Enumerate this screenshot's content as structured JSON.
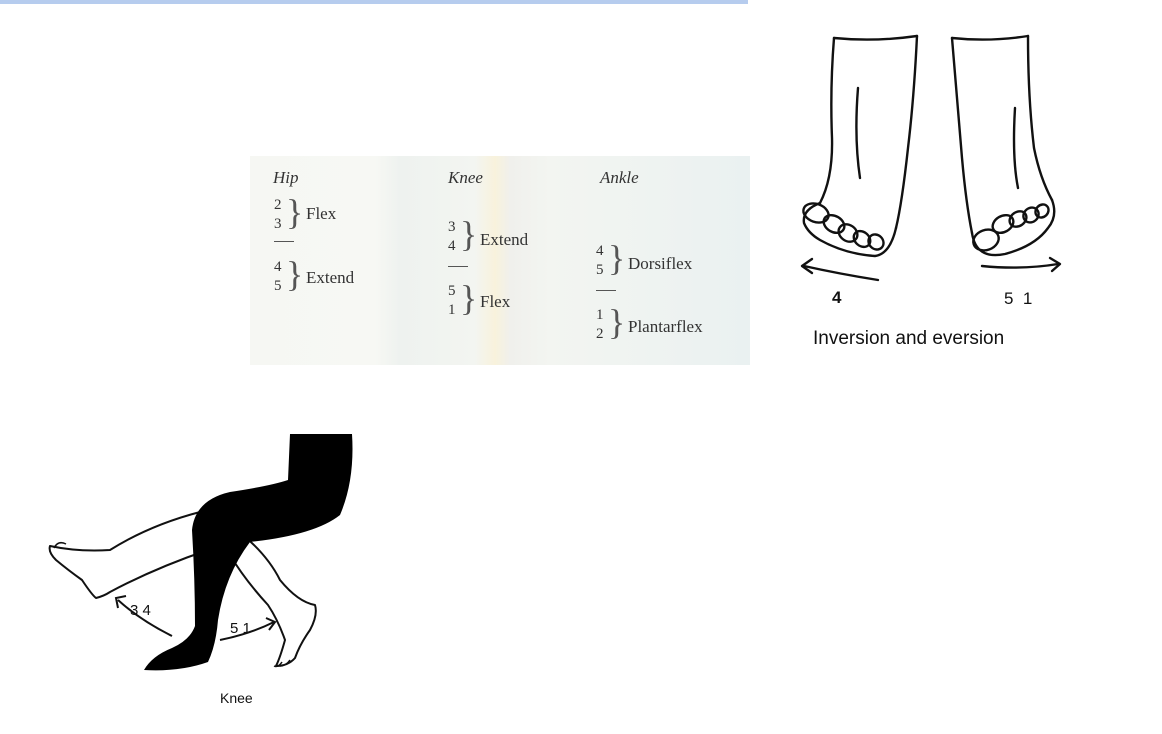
{
  "table": {
    "headers": [
      "Hip",
      "Knee",
      "Ankle"
    ],
    "hip": [
      {
        "nums": [
          "2",
          "3"
        ],
        "action": "Flex"
      },
      {
        "nums": [
          "4",
          "5"
        ],
        "action": "Extend"
      }
    ],
    "knee": [
      {
        "nums": [
          "3",
          "4"
        ],
        "action": "Extend"
      },
      {
        "nums": [
          "5",
          "1"
        ],
        "action": "Flex"
      }
    ],
    "ankle": [
      {
        "nums": [
          "4",
          "5"
        ],
        "action": "Dorsiflex"
      },
      {
        "nums": [
          "1",
          "2"
        ],
        "action": "Plantarflex"
      }
    ]
  },
  "feet_figure": {
    "caption": "Inversion and eversion",
    "left_arrow_label": "4",
    "right_arrow_label": "5  1"
  },
  "knee_figure": {
    "caption": "Knee",
    "back_arrow_label": "3 4",
    "forward_arrow_label": "5 1"
  }
}
